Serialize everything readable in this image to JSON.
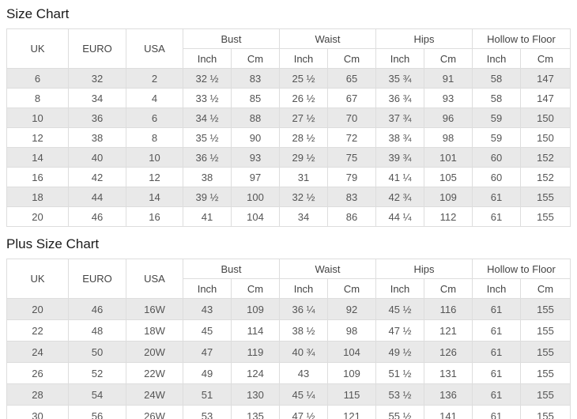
{
  "accent_colors": {
    "stripe_row_bg": "#e9e9e9",
    "table_border": "#dddddd",
    "text": "#555555"
  },
  "size_chart": {
    "title": "Size Chart",
    "header": {
      "uk": "UK",
      "euro": "EURO",
      "usa": "USA",
      "groups": [
        "Bust",
        "Waist",
        "Hips",
        "Hollow to Floor"
      ],
      "sub": [
        "Inch",
        "Cm"
      ]
    },
    "rows": [
      [
        "6",
        "32",
        "2",
        "32 ½",
        "83",
        "25 ½",
        "65",
        "35 ¾",
        "91",
        "58",
        "147"
      ],
      [
        "8",
        "34",
        "4",
        "33 ½",
        "85",
        "26 ½",
        "67",
        "36 ¾",
        "93",
        "58",
        "147"
      ],
      [
        "10",
        "36",
        "6",
        "34 ½",
        "88",
        "27 ½",
        "70",
        "37 ¾",
        "96",
        "59",
        "150"
      ],
      [
        "12",
        "38",
        "8",
        "35 ½",
        "90",
        "28 ½",
        "72",
        "38 ¾",
        "98",
        "59",
        "150"
      ],
      [
        "14",
        "40",
        "10",
        "36 ½",
        "93",
        "29 ½",
        "75",
        "39 ¾",
        "101",
        "60",
        "152"
      ],
      [
        "16",
        "42",
        "12",
        "38",
        "97",
        "31",
        "79",
        "41 ¼",
        "105",
        "60",
        "152"
      ],
      [
        "18",
        "44",
        "14",
        "39 ½",
        "100",
        "32 ½",
        "83",
        "42 ¾",
        "109",
        "61",
        "155"
      ],
      [
        "20",
        "46",
        "16",
        "41",
        "104",
        "34",
        "86",
        "44 ¼",
        "112",
        "61",
        "155"
      ]
    ]
  },
  "plus_size_chart": {
    "title": "Plus Size Chart",
    "header": {
      "uk": "UK",
      "euro": "EURO",
      "usa": "USA",
      "groups": [
        "Bust",
        "Waist",
        "Hips",
        "Hollow to Floor"
      ],
      "sub": [
        "Inch",
        "Cm"
      ]
    },
    "rows": [
      [
        "20",
        "46",
        "16W",
        "43",
        "109",
        "36 ¼",
        "92",
        "45 ½",
        "116",
        "61",
        "155"
      ],
      [
        "22",
        "48",
        "18W",
        "45",
        "114",
        "38 ½",
        "98",
        "47 ½",
        "121",
        "61",
        "155"
      ],
      [
        "24",
        "50",
        "20W",
        "47",
        "119",
        "40 ¾",
        "104",
        "49 ½",
        "126",
        "61",
        "155"
      ],
      [
        "26",
        "52",
        "22W",
        "49",
        "124",
        "43",
        "109",
        "51 ½",
        "131",
        "61",
        "155"
      ],
      [
        "28",
        "54",
        "24W",
        "51",
        "130",
        "45 ¼",
        "115",
        "53 ½",
        "136",
        "61",
        "155"
      ],
      [
        "30",
        "56",
        "26W",
        "53",
        "135",
        "47 ½",
        "121",
        "55 ½",
        "141",
        "61",
        "155"
      ]
    ]
  }
}
